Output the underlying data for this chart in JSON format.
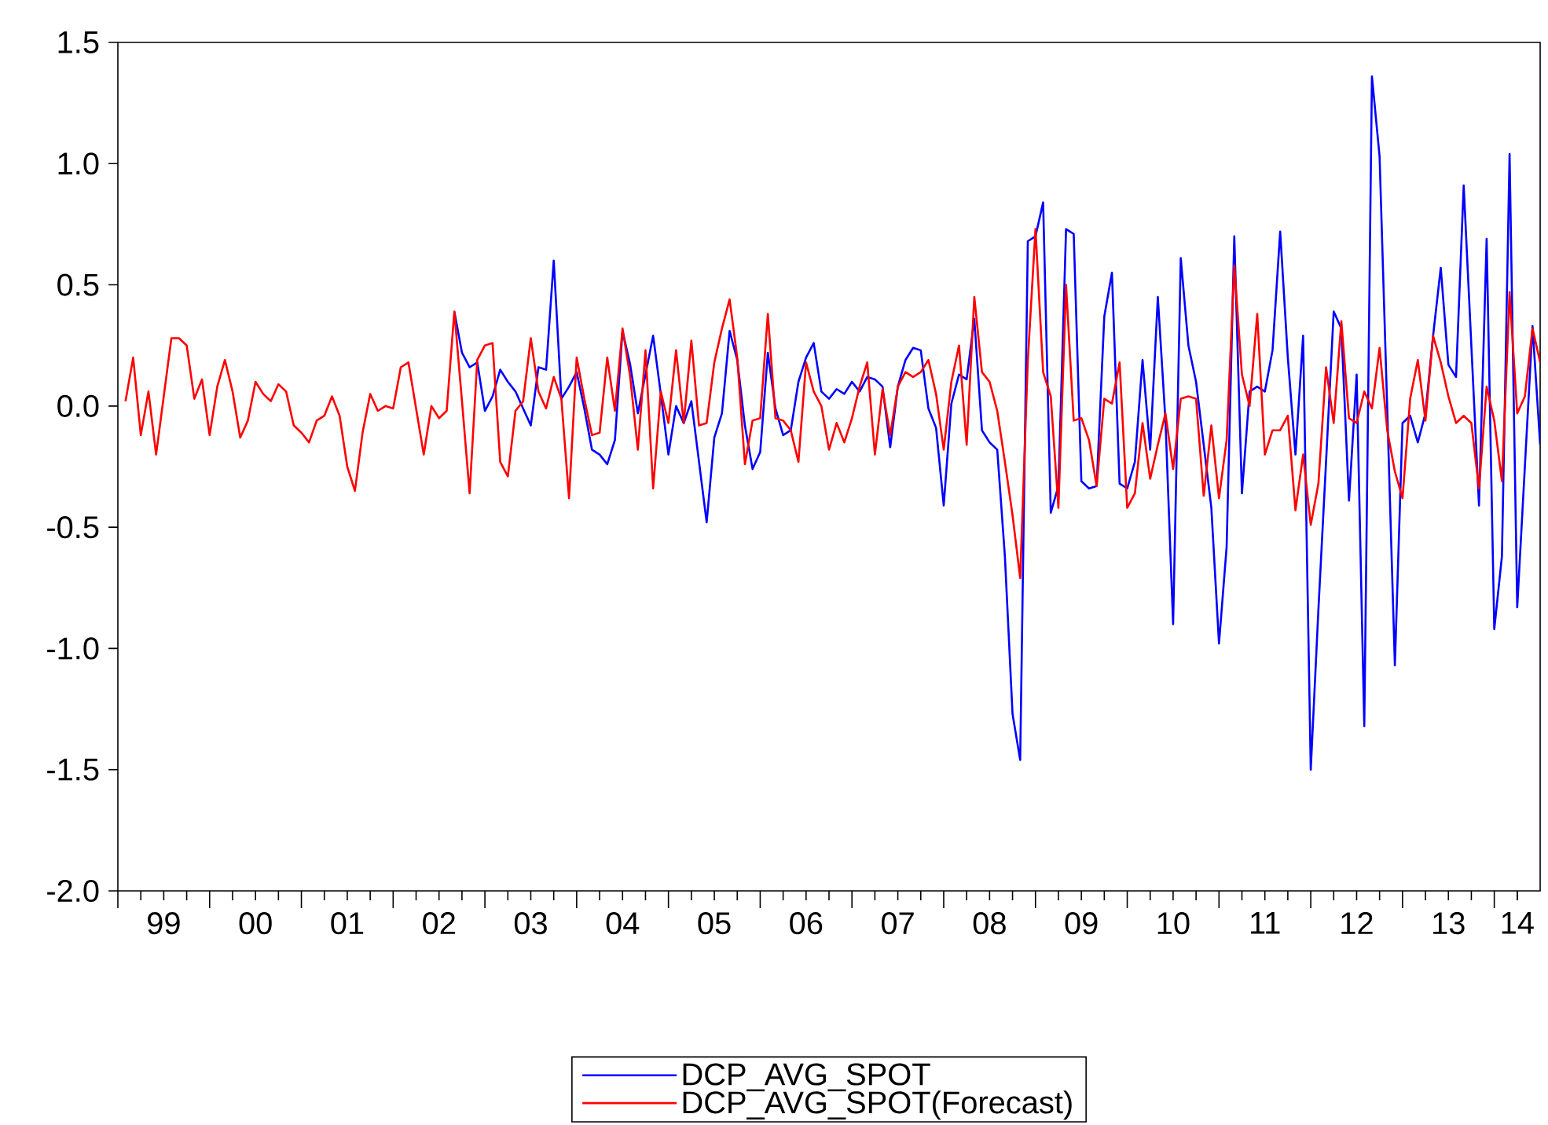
{
  "chart_data": {
    "type": "line",
    "x": [
      "1999-02",
      "1999-03",
      "1999-04",
      "1999-05",
      "1999-06",
      "1999-07",
      "1999-08",
      "1999-09",
      "1999-10",
      "1999-11",
      "1999-12",
      "2000-01",
      "2000-02",
      "2000-03",
      "2000-04",
      "2000-05",
      "2000-06",
      "2000-07",
      "2000-08",
      "2000-09",
      "2000-10",
      "2000-11",
      "2000-12",
      "2001-01",
      "2001-02",
      "2001-03",
      "2001-04",
      "2001-05",
      "2001-06",
      "2001-07",
      "2001-08",
      "2001-09",
      "2001-10",
      "2001-11",
      "2001-12",
      "2002-01",
      "2002-02",
      "2002-03",
      "2002-04",
      "2002-05",
      "2002-06",
      "2002-07",
      "2002-08",
      "2002-09",
      "2002-10",
      "2002-11",
      "2002-12",
      "2003-01",
      "2003-02",
      "2003-03",
      "2003-04",
      "2003-05",
      "2003-06",
      "2003-07",
      "2003-08",
      "2003-09",
      "2003-10",
      "2003-11",
      "2003-12",
      "2004-01",
      "2004-02",
      "2004-03",
      "2004-04",
      "2004-05",
      "2004-06",
      "2004-07",
      "2004-08",
      "2004-09",
      "2004-10",
      "2004-11",
      "2004-12",
      "2005-01",
      "2005-02",
      "2005-03",
      "2005-04",
      "2005-05",
      "2005-06",
      "2005-07",
      "2005-08",
      "2005-09",
      "2005-10",
      "2005-11",
      "2005-12",
      "2006-01",
      "2006-02",
      "2006-03",
      "2006-04",
      "2006-05",
      "2006-06",
      "2006-07",
      "2006-08",
      "2006-09",
      "2006-10",
      "2006-11",
      "2006-12",
      "2007-01",
      "2007-02",
      "2007-03",
      "2007-04",
      "2007-05",
      "2007-06",
      "2007-07",
      "2007-08",
      "2007-09",
      "2007-10",
      "2007-11",
      "2007-12",
      "2008-01",
      "2008-02",
      "2008-03",
      "2008-04",
      "2008-05",
      "2008-06",
      "2008-07",
      "2008-08",
      "2008-09",
      "2008-10",
      "2008-11",
      "2008-12",
      "2009-01",
      "2009-02",
      "2009-03",
      "2009-04",
      "2009-05",
      "2009-06",
      "2009-07",
      "2009-08",
      "2009-09",
      "2009-10",
      "2009-11",
      "2009-12",
      "2010-01",
      "2010-02",
      "2010-03",
      "2010-04",
      "2010-05",
      "2010-06",
      "2010-07",
      "2010-08",
      "2010-09",
      "2010-10",
      "2010-11",
      "2010-12",
      "2011-01",
      "2011-02",
      "2011-03",
      "2011-04",
      "2011-05",
      "2011-06",
      "2011-07",
      "2011-08",
      "2011-09",
      "2011-10",
      "2011-11",
      "2011-12",
      "2012-01",
      "2012-02",
      "2012-03",
      "2012-04",
      "2012-05",
      "2012-06",
      "2012-07",
      "2012-08",
      "2012-09",
      "2012-10",
      "2012-11",
      "2012-12",
      "2013-01",
      "2013-02",
      "2013-03",
      "2013-04",
      "2013-05",
      "2013-06",
      "2013-07",
      "2013-08",
      "2013-09",
      "2013-10",
      "2013-11",
      "2013-12",
      "2014-01",
      "2014-02",
      "2014-03",
      "2014-04",
      "2014-05",
      "2014-06",
      "2014-07"
    ],
    "xlim": [
      "1999-01",
      "2014-07"
    ],
    "xticks": [
      {
        "value": "1999-01",
        "label": null
      },
      {
        "value": "1999-07",
        "label": "99"
      },
      {
        "value": "2000-01",
        "label": null
      },
      {
        "value": "2000-07",
        "label": "00"
      },
      {
        "value": "2001-01",
        "label": null
      },
      {
        "value": "2001-07",
        "label": "01"
      },
      {
        "value": "2002-01",
        "label": null
      },
      {
        "value": "2002-07",
        "label": "02"
      },
      {
        "value": "2003-01",
        "label": null
      },
      {
        "value": "2003-07",
        "label": "03"
      },
      {
        "value": "2004-01",
        "label": null
      },
      {
        "value": "2004-07",
        "label": "04"
      },
      {
        "value": "2005-01",
        "label": null
      },
      {
        "value": "2005-07",
        "label": "05"
      },
      {
        "value": "2006-01",
        "label": null
      },
      {
        "value": "2006-07",
        "label": "06"
      },
      {
        "value": "2007-01",
        "label": null
      },
      {
        "value": "2007-07",
        "label": "07"
      },
      {
        "value": "2008-01",
        "label": null
      },
      {
        "value": "2008-07",
        "label": "08"
      },
      {
        "value": "2009-01",
        "label": null
      },
      {
        "value": "2009-07",
        "label": "09"
      },
      {
        "value": "2010-01",
        "label": null
      },
      {
        "value": "2010-07",
        "label": "10"
      },
      {
        "value": "2011-01",
        "label": null
      },
      {
        "value": "2011-07",
        "label": "11"
      },
      {
        "value": "2012-01",
        "label": null
      },
      {
        "value": "2012-07",
        "label": "12"
      },
      {
        "value": "2013-01",
        "label": null
      },
      {
        "value": "2013-07",
        "label": "13"
      },
      {
        "value": "2014-01",
        "label": null
      },
      {
        "value": "2014-04",
        "label": "14"
      }
    ],
    "ylim": [
      -2.0,
      1.5
    ],
    "yticks": [
      {
        "value": -2.0,
        "label": "-2.0"
      },
      -1.5,
      {
        "value": -1.0,
        "label": "-1.0"
      },
      -0.5,
      {
        "value": 0.0,
        "label": "0.0"
      },
      0.5,
      {
        "value": 1.0,
        "label": "1.0"
      },
      1.5
    ],
    "legend": "bottom",
    "series": [
      {
        "name": "DCP_AVG_SPOT",
        "color": "#0000ff",
        "values": [
          null,
          null,
          null,
          null,
          null,
          null,
          null,
          null,
          null,
          null,
          null,
          null,
          null,
          null,
          null,
          null,
          null,
          null,
          null,
          null,
          null,
          null,
          null,
          null,
          null,
          null,
          null,
          null,
          null,
          null,
          null,
          null,
          null,
          null,
          null,
          null,
          null,
          null,
          null,
          null,
          null,
          null,
          null,
          0.39,
          0.22,
          0.16,
          0.18,
          -0.02,
          0.04,
          0.15,
          0.1,
          0.06,
          -0.01,
          -0.08,
          0.16,
          0.15,
          0.6,
          0.03,
          0.08,
          0.14,
          -0.01,
          -0.18,
          -0.2,
          -0.24,
          -0.14,
          0.31,
          0.17,
          -0.03,
          0.13,
          0.29,
          0.05,
          -0.2,
          0.0,
          -0.07,
          0.02,
          -0.23,
          -0.48,
          -0.13,
          -0.03,
          0.31,
          0.19,
          -0.08,
          -0.26,
          -0.19,
          0.22,
          -0.01,
          -0.12,
          -0.1,
          0.1,
          0.2,
          0.26,
          0.06,
          0.03,
          0.07,
          0.05,
          0.1,
          0.06,
          0.12,
          0.11,
          0.08,
          -0.17,
          0.08,
          0.19,
          0.24,
          0.23,
          -0.01,
          -0.09,
          -0.41,
          0.01,
          0.13,
          0.11,
          0.36,
          -0.1,
          -0.15,
          -0.18,
          -0.62,
          -1.27,
          -1.46,
          0.68,
          0.7,
          0.84,
          -0.44,
          -0.33,
          0.73,
          0.71,
          -0.31,
          -0.34,
          -0.33,
          0.37,
          0.55,
          -0.32,
          -0.34,
          -0.23,
          0.19,
          -0.18,
          0.45,
          -0.06,
          -0.9,
          0.61,
          0.25,
          0.1,
          -0.16,
          -0.42,
          -0.98,
          -0.58,
          0.7,
          -0.36,
          0.06,
          0.08,
          0.06,
          0.23,
          0.72,
          0.2,
          -0.2,
          0.29,
          -1.5,
          -0.84,
          -0.23,
          0.39,
          0.32,
          -0.39,
          0.13,
          -1.32,
          1.36,
          1.03,
          -0.01,
          -1.07,
          -0.07,
          -0.04,
          -0.15,
          -0.03,
          0.29,
          0.57,
          0.17,
          0.12,
          0.91,
          0.25,
          -0.41,
          0.69,
          -0.92,
          -0.62,
          1.04,
          -0.83,
          -0.25,
          0.33,
          -0.16
        ]
      },
      {
        "name": "DCP_AVG_SPOT(Forecast)",
        "color": "#ff0000",
        "values": [
          0.02,
          0.2,
          -0.12,
          0.06,
          -0.2,
          0.04,
          0.28,
          0.28,
          0.25,
          0.03,
          0.11,
          -0.12,
          0.08,
          0.19,
          0.06,
          -0.13,
          -0.06,
          0.1,
          0.05,
          0.02,
          0.09,
          0.06,
          -0.08,
          -0.11,
          -0.15,
          -0.06,
          -0.04,
          0.04,
          -0.04,
          -0.25,
          -0.35,
          -0.11,
          0.05,
          -0.02,
          0.0,
          -0.01,
          0.16,
          0.18,
          -0.01,
          -0.2,
          0.0,
          -0.05,
          -0.02,
          0.39,
          0.02,
          -0.36,
          0.19,
          0.25,
          0.26,
          -0.23,
          -0.29,
          -0.02,
          0.02,
          0.28,
          0.06,
          -0.01,
          0.12,
          0.03,
          -0.38,
          0.2,
          0.03,
          -0.12,
          -0.11,
          0.2,
          -0.02,
          0.32,
          0.12,
          -0.18,
          0.23,
          -0.34,
          0.06,
          -0.07,
          0.23,
          -0.07,
          0.27,
          -0.08,
          -0.07,
          0.18,
          0.32,
          0.44,
          0.2,
          -0.24,
          -0.06,
          -0.05,
          0.38,
          -0.05,
          -0.06,
          -0.1,
          -0.23,
          0.18,
          0.06,
          0.0,
          -0.18,
          -0.07,
          -0.15,
          -0.05,
          0.08,
          0.18,
          -0.2,
          0.07,
          -0.12,
          0.08,
          0.14,
          0.12,
          0.14,
          0.19,
          0.05,
          -0.18,
          0.1,
          0.25,
          -0.16,
          0.45,
          0.14,
          0.1,
          -0.02,
          -0.23,
          -0.45,
          -0.71,
          0.19,
          0.73,
          0.14,
          0.04,
          -0.42,
          0.5,
          -0.06,
          -0.05,
          -0.14,
          -0.33,
          0.03,
          0.01,
          0.18,
          -0.42,
          -0.36,
          -0.07,
          -0.3,
          -0.16,
          -0.03,
          -0.26,
          0.03,
          0.04,
          0.03,
          -0.37,
          -0.08,
          -0.38,
          -0.14,
          0.58,
          0.13,
          0.0,
          0.38,
          -0.2,
          -0.1,
          -0.1,
          -0.04,
          -0.43,
          -0.2,
          -0.49,
          -0.32,
          0.16,
          -0.07,
          0.35,
          -0.05,
          -0.07,
          0.06,
          -0.01,
          0.24,
          -0.1,
          -0.27,
          -0.38,
          0.03,
          0.19,
          -0.06,
          0.29,
          0.18,
          0.04,
          -0.07,
          -0.04,
          -0.07,
          -0.34,
          0.08,
          -0.06,
          -0.31,
          0.47,
          -0.03,
          0.04,
          0.32,
          0.18
        ]
      }
    ]
  }
}
